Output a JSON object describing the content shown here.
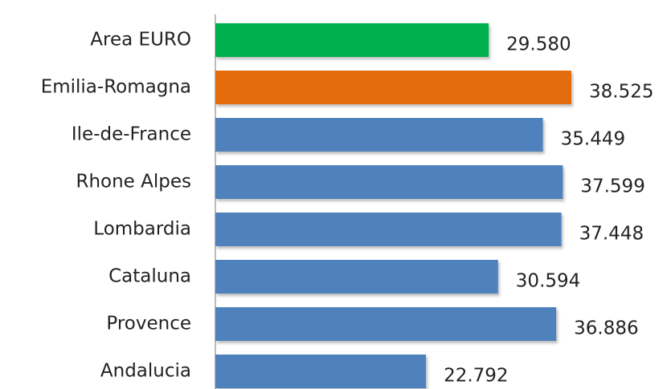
{
  "chart_data": {
    "type": "bar",
    "orientation": "horizontal",
    "categories": [
      "Area EURO",
      "Emilia-Romagna",
      "Ile-de-France",
      "Rhone Alpes",
      "Lombardia",
      "Cataluna",
      "Provence",
      "Andalucia"
    ],
    "values": [
      29580,
      38525,
      35449,
      37599,
      37448,
      30594,
      36886,
      22792
    ],
    "value_labels": [
      "29.580",
      "38.525",
      "35.449",
      "37.599",
      "37.448",
      "30.594",
      "36.886",
      "22.792"
    ],
    "colors": [
      "#00b050",
      "#e46c0a",
      "#4f81bd",
      "#4f81bd",
      "#4f81bd",
      "#4f81bd",
      "#4f81bd",
      "#4f81bd"
    ]
  }
}
